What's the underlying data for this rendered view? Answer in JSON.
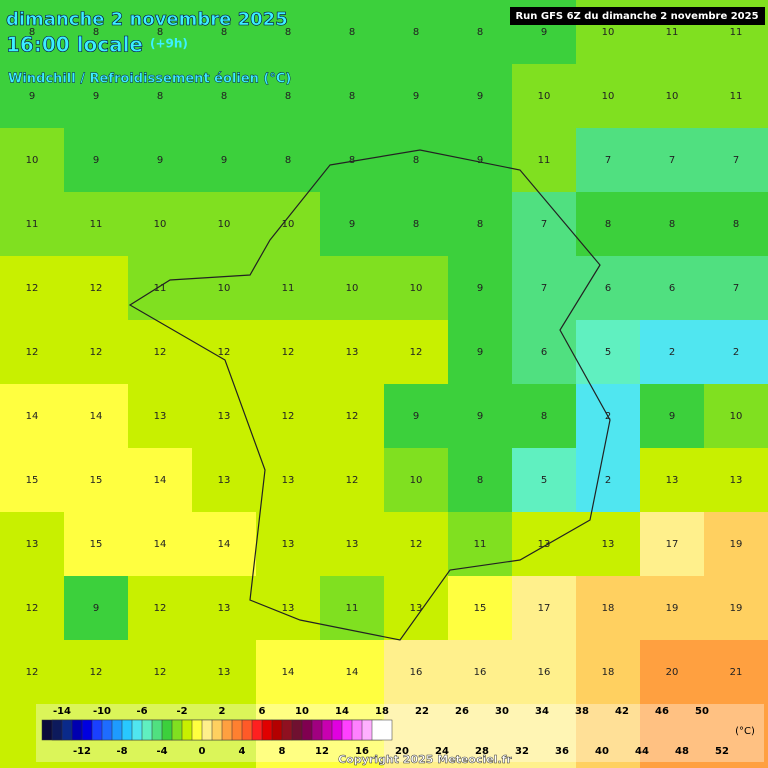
{
  "header": {
    "date": "dimanche 2 novembre 2025",
    "time": "16:00 locale",
    "offset": "(+9h)",
    "parameter": "Windchill / Refroidissement éolien (°C)",
    "run": "Run GFS 6Z du dimanche 2 novembre 2025"
  },
  "field": {
    "rows": [
      [
        8,
        8,
        8,
        8,
        8,
        8,
        8,
        8,
        9,
        10,
        11,
        11
      ],
      [
        9,
        9,
        8,
        8,
        8,
        8,
        9,
        9,
        10,
        10,
        10,
        11
      ],
      [
        10,
        9,
        9,
        9,
        8,
        8,
        8,
        9,
        11,
        7,
        7,
        7
      ],
      [
        11,
        11,
        10,
        10,
        10,
        9,
        8,
        8,
        7,
        8,
        8,
        8
      ],
      [
        12,
        12,
        11,
        10,
        11,
        10,
        10,
        9,
        7,
        6,
        6,
        7
      ],
      [
        12,
        12,
        12,
        12,
        12,
        13,
        12,
        9,
        6,
        5,
        2,
        2
      ],
      [
        14,
        14,
        13,
        13,
        12,
        12,
        9,
        9,
        8,
        2,
        9,
        10
      ],
      [
        15,
        15,
        14,
        13,
        13,
        12,
        10,
        8,
        5,
        2,
        13,
        13
      ],
      [
        13,
        15,
        14,
        14,
        13,
        13,
        12,
        11,
        13,
        13,
        17,
        19
      ],
      [
        12,
        9,
        12,
        13,
        13,
        11,
        13,
        15,
        17,
        18,
        19,
        19
      ],
      [
        12,
        12,
        12,
        13,
        14,
        14,
        16,
        16,
        16,
        18,
        20,
        21
      ]
    ]
  },
  "legend": {
    "unit": "(°C)",
    "top_labels": [
      -14,
      -10,
      -6,
      -2,
      2,
      6,
      10,
      14,
      18,
      22,
      26,
      30,
      34,
      38,
      42,
      46,
      50
    ],
    "bottom_labels": [
      -12,
      -8,
      -4,
      0,
      4,
      8,
      12,
      16,
      20,
      24,
      28,
      32,
      36,
      40,
      44,
      48,
      52
    ],
    "colors": [
      "#0a0a3c",
      "#0d1a5c",
      "#0a2a8a",
      "#0000b0",
      "#0000e0",
      "#1a40ff",
      "#1e6cff",
      "#1e9bff",
      "#28c8ff",
      "#50e6f0",
      "#60f0c0",
      "#50e080",
      "#3cd03c",
      "#80e020",
      "#c8f000",
      "#ffff40",
      "#fff08c",
      "#ffd060",
      "#ffa040",
      "#ff8030",
      "#ff5a28",
      "#ff2020",
      "#e00000",
      "#b40000",
      "#901020",
      "#701030",
      "#800050",
      "#a00080",
      "#c800b0",
      "#e000e0",
      "#ff40ff",
      "#ff80ff",
      "#ffb0ff",
      "#ffffff"
    ]
  },
  "footer": {
    "copyright": "Copyright 2025 Meteociel.fr"
  }
}
